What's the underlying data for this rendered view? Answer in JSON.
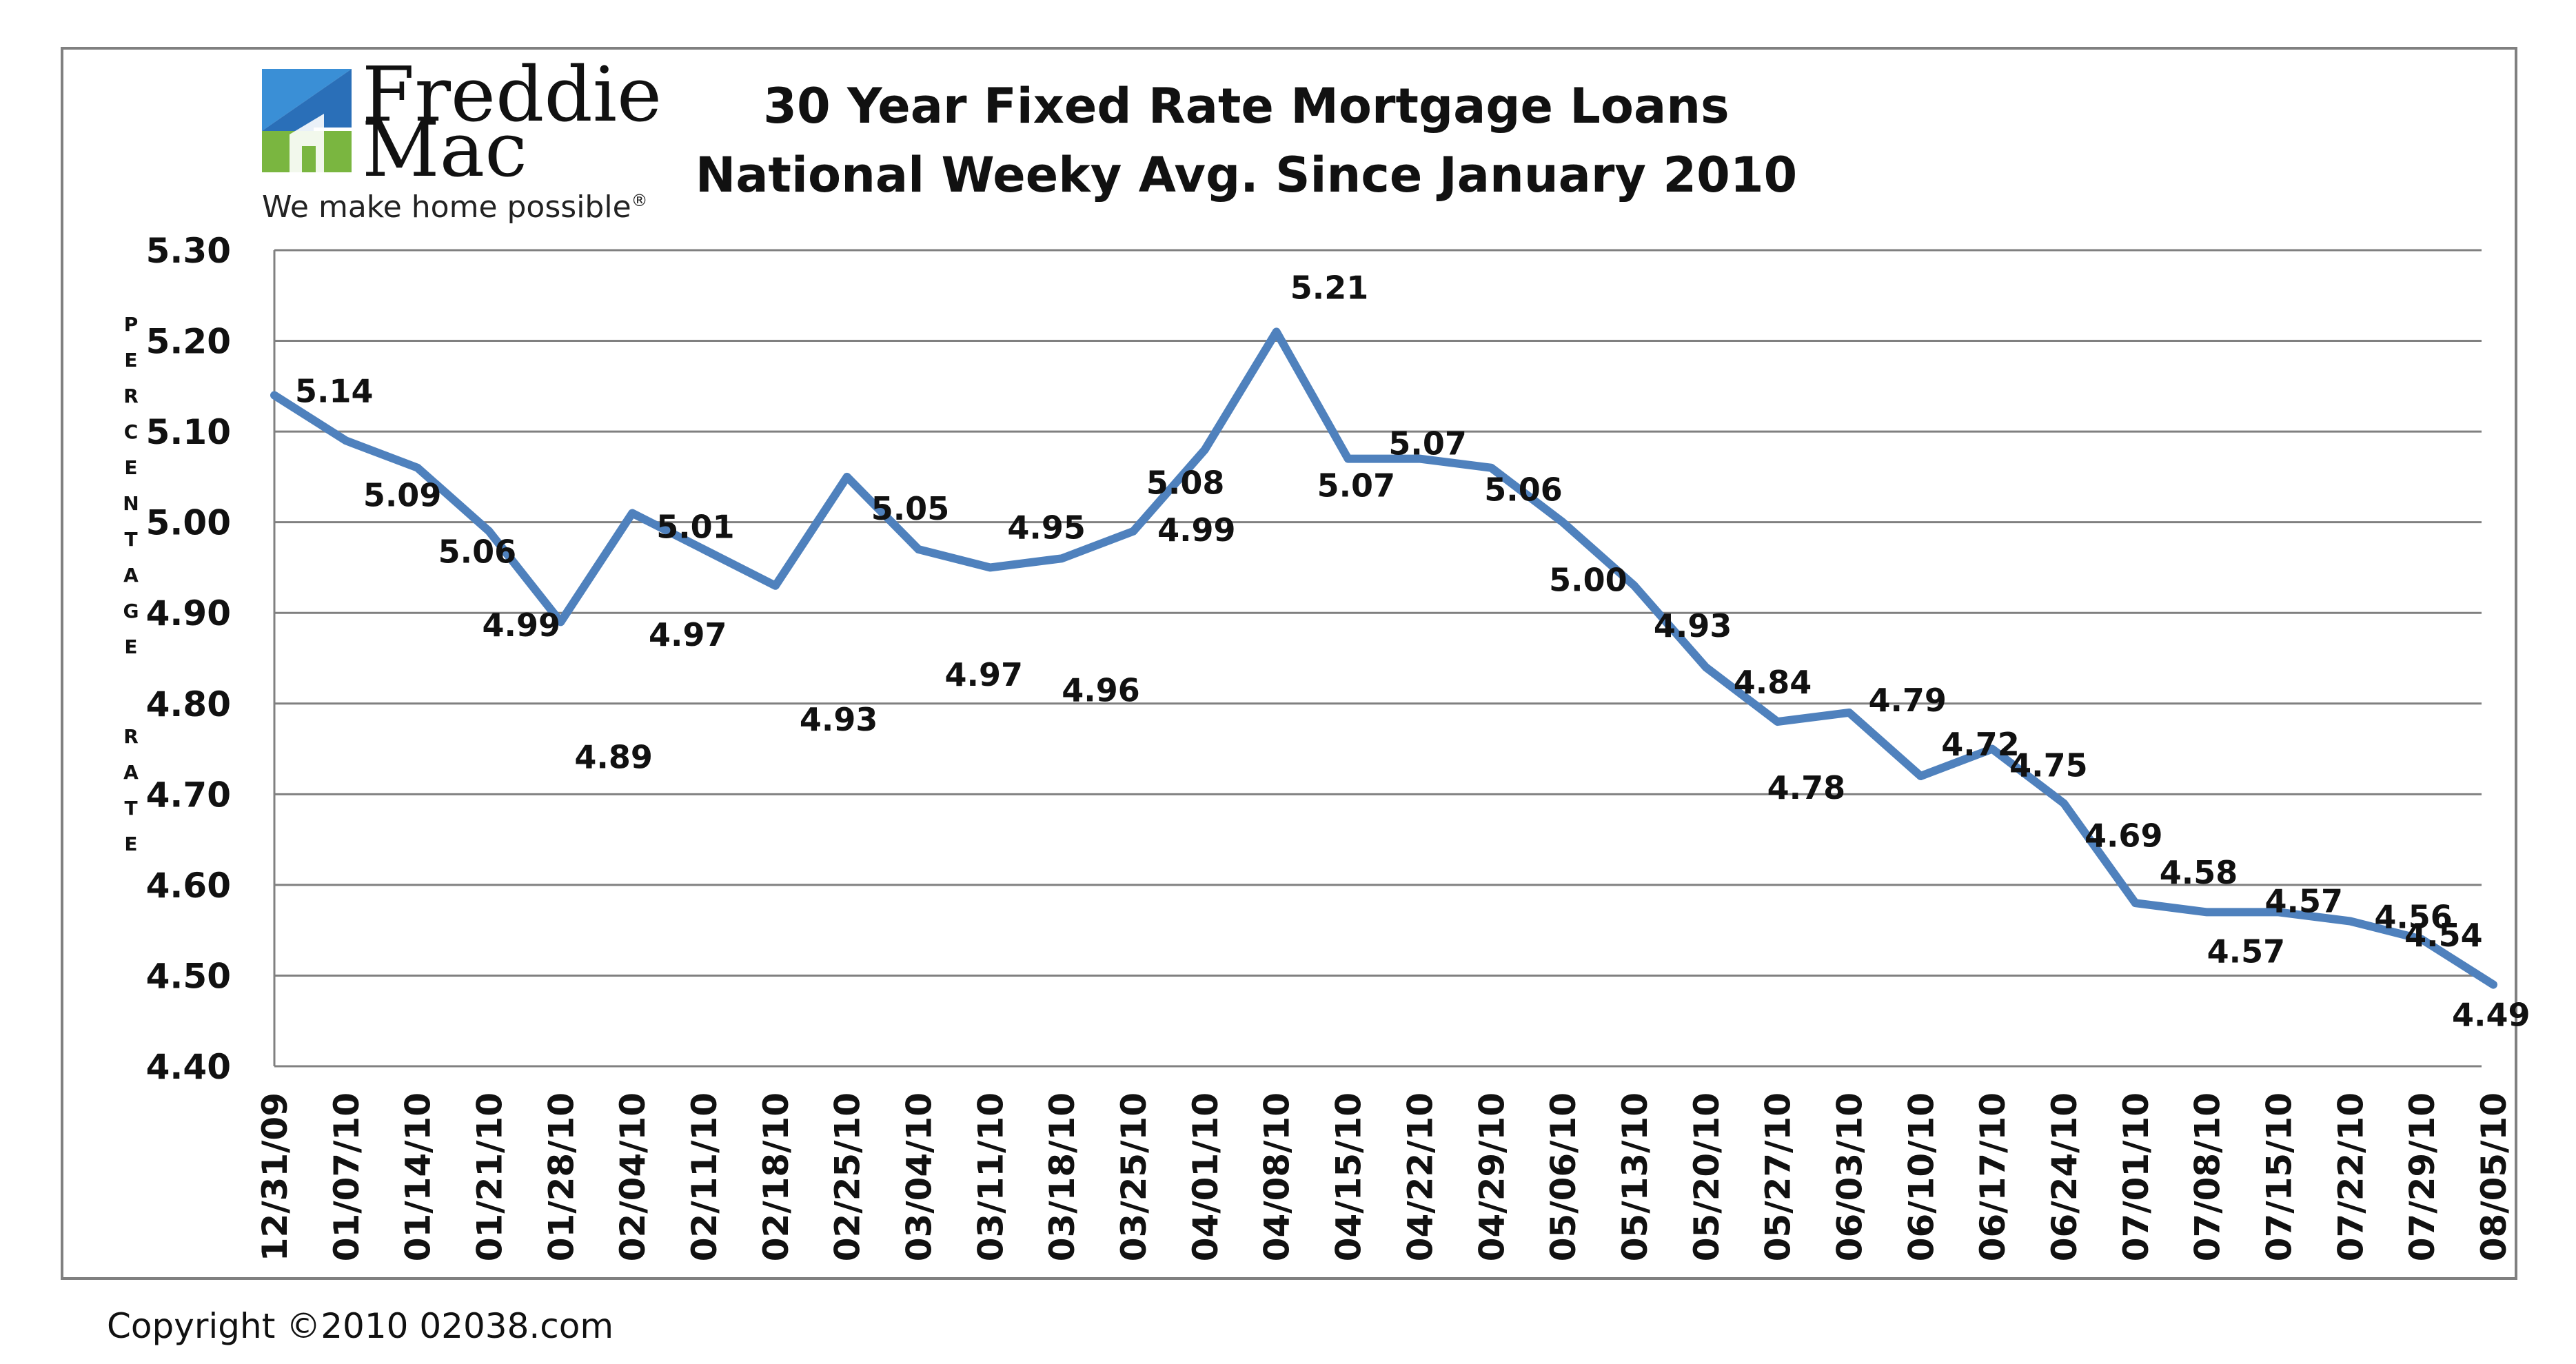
{
  "logo": {
    "line1": "Freddie",
    "line2": "Mac",
    "tagline": "We make home possible",
    "tagline_mark": "®"
  },
  "copyright": "Copyright ©2010 02038.com",
  "chart_data": {
    "type": "line",
    "title": "30 Year Fixed Rate Mortgage Loans",
    "subtitle": "National Weeky Avg. Since January 2010",
    "ylabel": "PERCENTAGE RATE",
    "xlabel": "",
    "ylim": [
      4.4,
      5.3
    ],
    "ytick_step": 0.1,
    "grid": true,
    "line_color": "#4f81bd",
    "categories": [
      "12/31/09",
      "01/07/10",
      "01/14/10",
      "01/21/10",
      "01/28/10",
      "02/04/10",
      "02/11/10",
      "02/18/10",
      "02/25/10",
      "03/04/10",
      "03/11/10",
      "03/18/10",
      "03/25/10",
      "04/01/10",
      "04/08/10",
      "04/15/10",
      "04/22/10",
      "04/29/10",
      "05/06/10",
      "05/13/10",
      "05/20/10",
      "05/27/10",
      "06/03/10",
      "06/10/10",
      "06/17/10",
      "06/24/10",
      "07/01/10",
      "07/08/10",
      "07/15/10",
      "07/22/10",
      "07/29/10",
      "08/05/10"
    ],
    "series": [
      {
        "name": "30 Year Fixed Rate",
        "values": [
          5.14,
          5.09,
          5.06,
          4.99,
          4.89,
          5.01,
          4.97,
          4.93,
          5.05,
          4.97,
          4.95,
          4.96,
          4.99,
          5.08,
          5.21,
          5.07,
          5.07,
          5.06,
          5.0,
          4.93,
          4.84,
          4.78,
          4.79,
          4.72,
          4.75,
          4.69,
          4.58,
          4.57,
          4.57,
          4.56,
          4.54,
          4.49
        ],
        "labels": [
          "5.14",
          "5.09",
          "5.06",
          "4.99",
          "4.89",
          "5.01",
          "4.97",
          "4.93",
          "5.05",
          "4.97",
          "4.95",
          "4.96",
          "4.99",
          "5.08",
          "5.21",
          "5.07",
          "5.07",
          "5.06",
          "5.00",
          "4.93",
          "4.84",
          "4.78",
          "4.79",
          "4.72",
          "4.75",
          "4.69",
          "4.58",
          "4.57",
          "4.57",
          "4.56",
          "4.54",
          "4.49"
        ]
      }
    ]
  }
}
